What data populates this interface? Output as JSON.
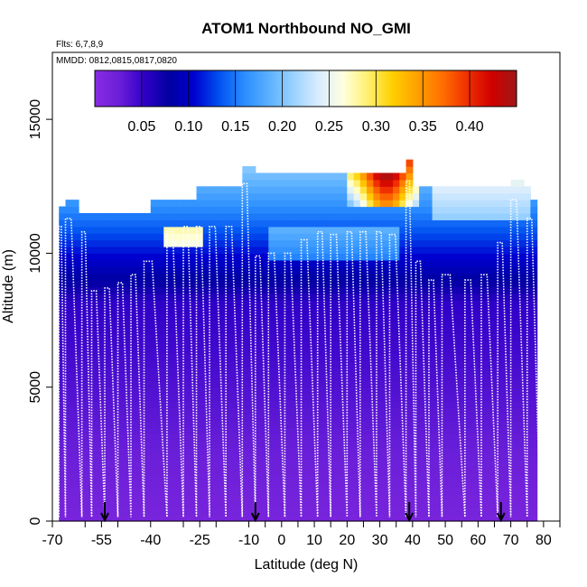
{
  "chart_data": {
    "type": "heatmap",
    "title": "ATOM1 Northbound NO_GMI",
    "flights_label": "Flts: 6,7,8,9",
    "dates_label": "MMDD: 0812,0815,0817,0820",
    "xlabel": "Latitude (deg N)",
    "ylabel": "Altitude (m)",
    "xlim": [
      -70,
      85
    ],
    "ylim": [
      0,
      17500
    ],
    "x_ticks": [
      "-70",
      "-55",
      "-40",
      "-25",
      "-10",
      "0",
      "10",
      "20",
      "30",
      "40",
      "50",
      "60",
      "70",
      "80"
    ],
    "x_tick_values": [
      -70,
      -55,
      -40,
      -25,
      -10,
      0,
      10,
      20,
      30,
      40,
      50,
      60,
      70,
      80
    ],
    "x_minor_ticks": [
      -60,
      -50,
      -30,
      -20,
      -5,
      5,
      15,
      25,
      35,
      45,
      55,
      65,
      75,
      85
    ],
    "y_ticks": [
      "0",
      "5000",
      "10000",
      "15000"
    ],
    "y_tick_values": [
      0,
      5000,
      10000,
      15000
    ],
    "colorbar": {
      "min": 0.0,
      "max": 0.45,
      "tick_labels": [
        "0.05",
        "0.10",
        "0.15",
        "0.20",
        "0.25",
        "0.30",
        "0.35",
        "0.40"
      ],
      "tick_values": [
        0.05,
        0.1,
        0.15,
        0.2,
        0.25,
        0.3,
        0.35,
        0.4
      ],
      "colors": [
        "#8a2be2",
        "#6a1fd8",
        "#3000c8",
        "#0000a0",
        "#0000d0",
        "#0050f0",
        "#2a8cff",
        "#5ab0ff",
        "#9ad2ff",
        "#d8ecff",
        "#ffffe0",
        "#fff070",
        "#ffd000",
        "#ffa000",
        "#ff7000",
        "#f03000",
        "#d00000",
        "#a01818"
      ]
    },
    "flight_dates_marker_lats": [
      -54,
      -8,
      39,
      67
    ],
    "profiles": [
      {
        "lat0": -68,
        "lat1": -66,
        "top": 11000
      },
      {
        "lat0": -66,
        "lat1": -61,
        "top": 11300
      },
      {
        "lat0": -61,
        "lat1": -58,
        "top": 10800
      },
      {
        "lat0": -58,
        "lat1": -54,
        "top": 8600
      },
      {
        "lat0": -54,
        "lat1": -50,
        "top": 8700
      },
      {
        "lat0": -50,
        "lat1": -46,
        "top": 8900
      },
      {
        "lat0": -46,
        "lat1": -42,
        "top": 9200
      },
      {
        "lat0": -42,
        "lat1": -35,
        "top": 9700
      },
      {
        "lat0": -35,
        "lat1": -30,
        "top": 10800
      },
      {
        "lat0": -30,
        "lat1": -26,
        "top": 11000
      },
      {
        "lat0": -26,
        "lat1": -22,
        "top": 11000
      },
      {
        "lat0": -22,
        "lat1": -17,
        "top": 11000
      },
      {
        "lat0": -17,
        "lat1": -12,
        "top": 11000
      },
      {
        "lat0": -12,
        "lat1": -8,
        "top": 12600
      },
      {
        "lat0": -8,
        "lat1": -4,
        "top": 9900
      },
      {
        "lat0": -4,
        "lat1": 1,
        "top": 10000
      },
      {
        "lat0": 1,
        "lat1": 6,
        "top": 10000
      },
      {
        "lat0": 6,
        "lat1": 11,
        "top": 10500
      },
      {
        "lat0": 11,
        "lat1": 15,
        "top": 10800
      },
      {
        "lat0": 15,
        "lat1": 20,
        "top": 10700
      },
      {
        "lat0": 20,
        "lat1": 24,
        "top": 10800
      },
      {
        "lat0": 24,
        "lat1": 29,
        "top": 10800
      },
      {
        "lat0": 29,
        "lat1": 33,
        "top": 10800
      },
      {
        "lat0": 33,
        "lat1": 38,
        "top": 10700
      },
      {
        "lat0": 38,
        "lat1": 41,
        "top": 12700
      },
      {
        "lat0": 41,
        "lat1": 45,
        "top": 9700
      },
      {
        "lat0": 45,
        "lat1": 49,
        "top": 9000
      },
      {
        "lat0": 49,
        "lat1": 56,
        "top": 9200
      },
      {
        "lat0": 56,
        "lat1": 61,
        "top": 9000
      },
      {
        "lat0": 61,
        "lat1": 66,
        "top": 9200
      },
      {
        "lat0": 66,
        "lat1": 70,
        "top": 10400
      },
      {
        "lat0": 70,
        "lat1": 75,
        "top": 12000
      },
      {
        "lat0": 75,
        "lat1": 79,
        "top": 11300
      }
    ]
  }
}
